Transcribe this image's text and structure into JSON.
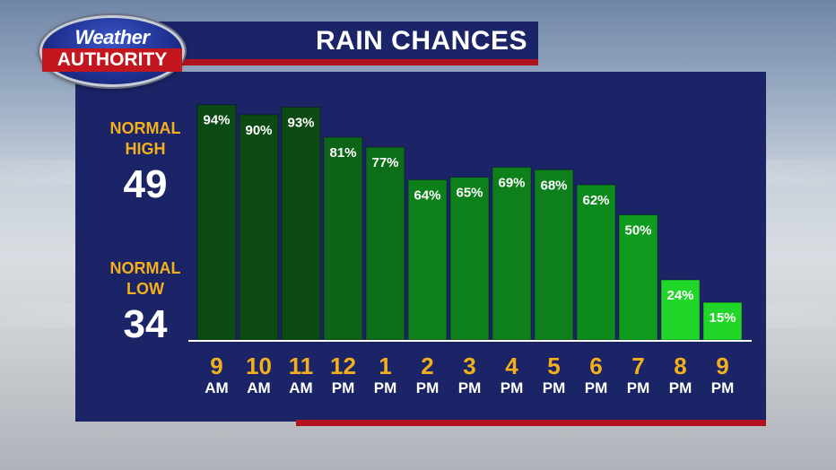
{
  "header": {
    "title": "RAIN CHANCES"
  },
  "logo": {
    "line1": "Weather",
    "line2": "AUTHORITY"
  },
  "normals": {
    "high_label_1": "NORMAL",
    "high_label_2": "HIGH",
    "high_value": "49",
    "low_label_1": "NORMAL",
    "low_label_2": "LOW",
    "low_value": "34"
  },
  "colors": {
    "panel": "#1b2466",
    "accent_red": "#b3121f",
    "label_gold": "#f3b01c",
    "bar_dark": "#0c4a14",
    "bar_mid": "#0d8a1c",
    "bar_bright": "#1fd629"
  },
  "chart_data": {
    "type": "bar",
    "title": "RAIN CHANCES",
    "xlabel": "",
    "ylabel": "",
    "ylim": [
      0,
      100
    ],
    "grid": false,
    "categories": [
      "9 AM",
      "10 AM",
      "11 AM",
      "12 PM",
      "1 PM",
      "2 PM",
      "3 PM",
      "4 PM",
      "5 PM",
      "6 PM",
      "7 PM",
      "8 PM",
      "9 PM"
    ],
    "hours": [
      "9",
      "10",
      "11",
      "12",
      "1",
      "2",
      "3",
      "4",
      "5",
      "6",
      "7",
      "8",
      "9"
    ],
    "periods": [
      "AM",
      "AM",
      "AM",
      "PM",
      "PM",
      "PM",
      "PM",
      "PM",
      "PM",
      "PM",
      "PM",
      "PM",
      "PM"
    ],
    "values": [
      94,
      90,
      93,
      81,
      77,
      64,
      65,
      69,
      68,
      62,
      50,
      24,
      15
    ],
    "value_labels": [
      "94%",
      "90%",
      "93%",
      "81%",
      "77%",
      "64%",
      "65%",
      "69%",
      "68%",
      "62%",
      "50%",
      "24%",
      "15%"
    ],
    "bar_colors": [
      "#0c4a14",
      "#0c4a14",
      "#0c4a14",
      "#0d6418",
      "#0d6e1a",
      "#0d801c",
      "#0d801c",
      "#0d801c",
      "#0d801c",
      "#0d8a1c",
      "#0f9c1e",
      "#1fd629",
      "#1fd629"
    ]
  }
}
